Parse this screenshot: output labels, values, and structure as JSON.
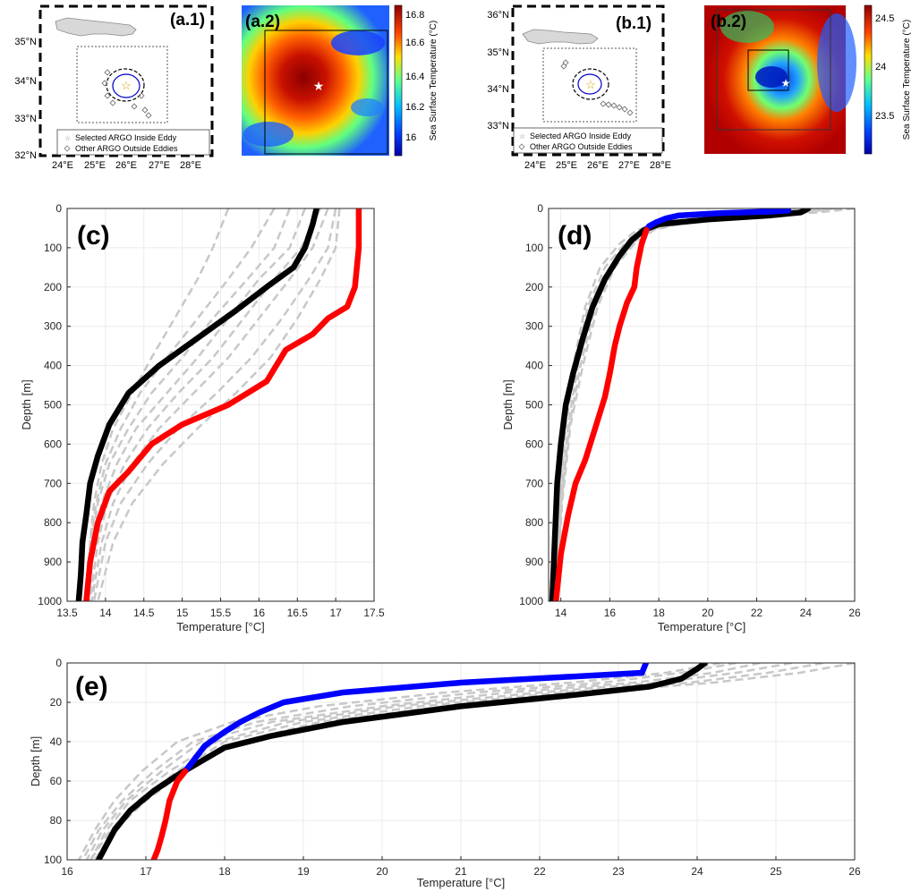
{
  "panels": {
    "a1": {
      "label": "(a.1)",
      "lat_ticks": [
        "35°N",
        "34°N",
        "33°N",
        "32°N"
      ],
      "lon_ticks": [
        "24°E",
        "25°E",
        "26°E",
        "27°E",
        "28°E"
      ],
      "legend": [
        "Selected ARGO Inside Eddy",
        "Other ARGO Outside Eddies"
      ]
    },
    "a2": {
      "label": "(a.2)",
      "colorbar_ticks": [
        "16.8",
        "16.6",
        "16.4",
        "16.2",
        "16"
      ],
      "colorbar_label": "Sea Surface Temperature (°C)"
    },
    "b1": {
      "label": "(b.1)",
      "lat_ticks": [
        "36°N",
        "35°N",
        "34°N",
        "33°N"
      ],
      "lon_ticks": [
        "24°E",
        "25°E",
        "26°E",
        "27°E",
        "28°E"
      ],
      "legend": [
        "Selected ARGO Inside Eddy",
        "Other ARGO Outside Eddies"
      ]
    },
    "b2": {
      "label": "(b.2)",
      "colorbar_ticks": [
        "24.5",
        "24",
        "23.5"
      ],
      "colorbar_label": "Sea Surface Temperature (°C)"
    }
  },
  "colors": {
    "black_profile": "#000000",
    "red_profile": "#ff0000",
    "blue_profile": "#0000ff",
    "argo_profiles": "#c8c8c8"
  },
  "chart_data": [
    {
      "id": "c",
      "label": "(c)",
      "type": "line",
      "xlabel": "Temperature [°C]",
      "ylabel": "Depth [m]",
      "xlim": [
        13.5,
        17.5
      ],
      "ylim": [
        0,
        1000
      ],
      "y_reversed": true,
      "xticks": [
        13.5,
        14,
        14.5,
        15,
        15.5,
        16,
        16.5,
        17,
        17.5
      ],
      "xtick_labels": [
        "13.5",
        "14",
        "14.5",
        "15",
        "15.5",
        "16",
        "16.5",
        "17",
        "17.5"
      ],
      "yticks": [
        0,
        100,
        200,
        300,
        400,
        500,
        600,
        700,
        800,
        900,
        1000
      ],
      "ytick_labels": [
        "0",
        "100",
        "200",
        "300",
        "400",
        "500",
        "600",
        "700",
        "800",
        "900",
        "1000"
      ],
      "grid": true,
      "series": [
        {
          "color": "#000000",
          "x": [
            16.75,
            16.7,
            16.6,
            16.45,
            16.1,
            15.7,
            15.2,
            14.7,
            14.3,
            14.05,
            13.9,
            13.8,
            13.75,
            13.7,
            13.68,
            13.65
          ],
          "y": [
            0,
            40,
            100,
            150,
            200,
            260,
            330,
            400,
            470,
            550,
            630,
            700,
            780,
            850,
            930,
            1000
          ]
        },
        {
          "color": "#ff0000",
          "x": [
            17.3,
            17.3,
            17.25,
            17.15,
            16.9,
            16.85,
            16.7,
            16.35,
            16.1,
            15.6,
            15.0,
            14.6,
            14.3,
            14.05,
            13.9,
            13.8,
            13.75
          ],
          "y": [
            0,
            100,
            200,
            250,
            280,
            290,
            320,
            360,
            440,
            500,
            550,
            600,
            670,
            720,
            800,
            900,
            1000
          ]
        }
      ],
      "gray_series": [
        {
          "x": [
            15.6,
            15.4,
            15.2,
            14.9,
            14.6,
            14.35,
            14.1,
            13.95,
            13.85,
            13.8,
            13.75
          ],
          "y": [
            0,
            100,
            180,
            280,
            380,
            470,
            560,
            650,
            750,
            850,
            1000
          ]
        },
        {
          "x": [
            16.2,
            15.9,
            15.6,
            15.2,
            14.8,
            14.45,
            14.2,
            14.0,
            13.88,
            13.8,
            13.75
          ],
          "y": [
            0,
            100,
            180,
            280,
            380,
            470,
            560,
            650,
            750,
            850,
            1000
          ]
        },
        {
          "x": [
            16.6,
            16.4,
            16.0,
            15.6,
            15.2,
            14.8,
            14.4,
            14.15,
            13.95,
            13.85,
            13.78
          ],
          "y": [
            0,
            100,
            180,
            280,
            380,
            470,
            560,
            650,
            750,
            850,
            1000
          ]
        },
        {
          "x": [
            16.9,
            16.7,
            16.4,
            16.0,
            15.6,
            15.15,
            14.7,
            14.35,
            14.1,
            13.95,
            13.82
          ],
          "y": [
            0,
            100,
            180,
            280,
            380,
            470,
            560,
            650,
            750,
            850,
            1000
          ]
        },
        {
          "x": [
            17.0,
            16.9,
            16.65,
            16.3,
            15.9,
            15.45,
            14.95,
            14.55,
            14.2,
            14.0,
            13.85
          ],
          "y": [
            0,
            100,
            180,
            280,
            380,
            470,
            560,
            650,
            750,
            850,
            1000
          ]
        },
        {
          "x": [
            17.05,
            17.0,
            16.8,
            16.5,
            16.15,
            15.7,
            15.2,
            14.75,
            14.35,
            14.1,
            13.9
          ],
          "y": [
            0,
            100,
            180,
            280,
            380,
            470,
            560,
            650,
            750,
            850,
            1000
          ]
        },
        {
          "x": [
            16.4,
            16.2,
            15.85,
            15.4,
            15.0,
            14.6,
            14.3,
            14.05,
            13.9,
            13.82,
            13.76
          ],
          "y": [
            0,
            100,
            180,
            280,
            380,
            470,
            560,
            650,
            750,
            850,
            1000
          ]
        },
        {
          "x": [
            16.8,
            16.55,
            16.2,
            15.8,
            15.4,
            14.95,
            14.55,
            14.25,
            14.02,
            13.9,
            13.8
          ],
          "y": [
            0,
            100,
            180,
            280,
            380,
            470,
            560,
            650,
            750,
            850,
            1000
          ]
        }
      ]
    },
    {
      "id": "d",
      "label": "(d)",
      "type": "line",
      "xlabel": "Temperature [°C]",
      "ylabel": "Depth [m]",
      "xlim": [
        13.5,
        26
      ],
      "ylim": [
        0,
        1000
      ],
      "y_reversed": true,
      "xticks": [
        14,
        16,
        18,
        20,
        22,
        24,
        26
      ],
      "xtick_labels": [
        "14",
        "16",
        "18",
        "20",
        "22",
        "24",
        "26"
      ],
      "yticks": [
        0,
        100,
        200,
        300,
        400,
        500,
        600,
        700,
        800,
        900,
        1000
      ],
      "ytick_labels": [
        "0",
        "100",
        "200",
        "300",
        "400",
        "500",
        "600",
        "700",
        "800",
        "900",
        "1000"
      ],
      "grid": true,
      "series": [
        {
          "color": "#000000",
          "x": [
            24.1,
            23.8,
            22.5,
            20.0,
            18.0,
            17.4,
            16.9,
            16.4,
            15.8,
            15.3,
            14.9,
            14.5,
            14.2,
            14.0,
            13.85,
            13.75,
            13.65
          ],
          "y": [
            0,
            10,
            18,
            28,
            40,
            55,
            80,
            120,
            180,
            250,
            330,
            420,
            500,
            600,
            700,
            850,
            1000
          ]
        },
        {
          "color": "#0000ff",
          "x": [
            23.3,
            22.5,
            20.5,
            18.8,
            18.3,
            17.9,
            17.6,
            17.5
          ],
          "y": [
            5,
            8,
            12,
            18,
            25,
            35,
            45,
            55
          ]
        },
        {
          "color": "#ff0000",
          "x": [
            17.5,
            17.3,
            17.1,
            17.0,
            16.7,
            16.4,
            16.2,
            16.0,
            15.8,
            15.4,
            15.0,
            14.6,
            14.3,
            14.0,
            13.8
          ],
          "y": [
            55,
            90,
            150,
            200,
            240,
            300,
            350,
            420,
            480,
            560,
            640,
            700,
            780,
            880,
            1000
          ]
        }
      ],
      "gray_series": [
        {
          "x": [
            25.5,
            23.5,
            21.0,
            18.8,
            17.5,
            16.8,
            16.0,
            15.3,
            14.7,
            14.3,
            14.0,
            13.8
          ],
          "y": [
            0,
            10,
            20,
            35,
            55,
            90,
            150,
            250,
            400,
            550,
            750,
            1000
          ]
        },
        {
          "x": [
            25.0,
            23.0,
            20.5,
            18.5,
            17.3,
            16.6,
            15.8,
            15.1,
            14.6,
            14.2,
            13.95,
            13.78
          ],
          "y": [
            0,
            10,
            20,
            35,
            55,
            90,
            150,
            250,
            400,
            550,
            750,
            1000
          ]
        },
        {
          "x": [
            26.0,
            24.5,
            22.0,
            19.2,
            17.8,
            17.0,
            16.2,
            15.5,
            14.9,
            14.4,
            14.05,
            13.82
          ],
          "y": [
            0,
            10,
            20,
            35,
            55,
            90,
            150,
            250,
            400,
            550,
            750,
            1000
          ]
        },
        {
          "x": [
            24.6,
            22.5,
            20.0,
            18.2,
            17.1,
            16.4,
            15.6,
            15.0,
            14.5,
            14.15,
            13.92,
            13.76
          ],
          "y": [
            0,
            10,
            20,
            35,
            55,
            90,
            150,
            250,
            400,
            550,
            750,
            1000
          ]
        },
        {
          "x": [
            25.2,
            24.0,
            21.5,
            19.0,
            17.6,
            16.9,
            16.1,
            15.4,
            14.8,
            14.35,
            14.02,
            13.8
          ],
          "y": [
            0,
            10,
            20,
            35,
            55,
            90,
            150,
            250,
            400,
            550,
            750,
            1000
          ]
        }
      ]
    },
    {
      "id": "e",
      "label": "(e)",
      "type": "line",
      "xlabel": "Temperature [°C]",
      "ylabel": "Depth [m]",
      "xlim": [
        16,
        26
      ],
      "ylim": [
        0,
        100
      ],
      "y_reversed": true,
      "xticks": [
        16,
        17,
        18,
        19,
        20,
        21,
        22,
        23,
        24,
        25,
        26
      ],
      "xtick_labels": [
        "16",
        "17",
        "18",
        "19",
        "20",
        "21",
        "22",
        "23",
        "24",
        "25",
        "26"
      ],
      "yticks": [
        0,
        20,
        40,
        60,
        80,
        100
      ],
      "ytick_labels": [
        "0",
        "20",
        "40",
        "60",
        "80",
        "100"
      ],
      "grid": true,
      "series": [
        {
          "color": "#000000",
          "x": [
            24.1,
            24.0,
            23.8,
            23.4,
            22.5,
            21.0,
            19.5,
            18.6,
            18.0,
            17.7,
            17.4,
            17.1,
            16.8,
            16.6,
            16.4
          ],
          "y": [
            0,
            3,
            8,
            12,
            16,
            22,
            30,
            37,
            43,
            50,
            57,
            65,
            75,
            85,
            100
          ]
        },
        {
          "color": "#0000ff",
          "x": [
            23.35,
            23.3,
            21.0,
            19.5,
            18.75,
            18.45,
            18.2,
            18.0,
            17.75,
            17.5
          ],
          "y": [
            0,
            5,
            10,
            15,
            20,
            25,
            30,
            35,
            42,
            55
          ]
        },
        {
          "color": "#ff0000",
          "x": [
            17.5,
            17.4,
            17.3,
            17.25,
            17.2,
            17.15,
            17.1
          ],
          "y": [
            55,
            60,
            70,
            80,
            88,
            95,
            100
          ]
        }
      ],
      "gray_series": [
        {
          "x": [
            25.2,
            24.5,
            23.5,
            22.0,
            20.2,
            18.8,
            17.9,
            17.3,
            16.8,
            16.5,
            16.3
          ],
          "y": [
            0,
            5,
            10,
            15,
            22,
            30,
            40,
            55,
            70,
            85,
            100
          ]
        },
        {
          "x": [
            24.5,
            23.8,
            22.8,
            21.2,
            19.6,
            18.4,
            17.6,
            17.1,
            16.7,
            16.4,
            16.2
          ],
          "y": [
            0,
            5,
            10,
            15,
            22,
            30,
            40,
            55,
            70,
            85,
            100
          ]
        },
        {
          "x": [
            26.0,
            25.3,
            24.2,
            22.6,
            20.8,
            19.2,
            18.2,
            17.5,
            17.0,
            16.6,
            16.35
          ],
          "y": [
            0,
            5,
            10,
            15,
            22,
            30,
            40,
            55,
            70,
            85,
            100
          ]
        },
        {
          "x": [
            24.8,
            24.2,
            23.2,
            21.6,
            20.0,
            18.6,
            17.7,
            17.2,
            16.75,
            16.45,
            16.25
          ],
          "y": [
            0,
            5,
            10,
            15,
            22,
            30,
            40,
            55,
            70,
            85,
            100
          ]
        },
        {
          "x": [
            25.6,
            24.9,
            23.9,
            22.3,
            20.5,
            19.0,
            18.0,
            17.4,
            16.9,
            16.55,
            16.3
          ],
          "y": [
            0,
            5,
            10,
            15,
            22,
            30,
            40,
            55,
            70,
            85,
            100
          ]
        },
        {
          "x": [
            24.3,
            23.6,
            22.4,
            20.8,
            19.2,
            18.1,
            17.4,
            16.95,
            16.6,
            16.35,
            16.15
          ],
          "y": [
            0,
            5,
            10,
            15,
            22,
            30,
            40,
            55,
            70,
            85,
            100
          ]
        }
      ]
    }
  ]
}
